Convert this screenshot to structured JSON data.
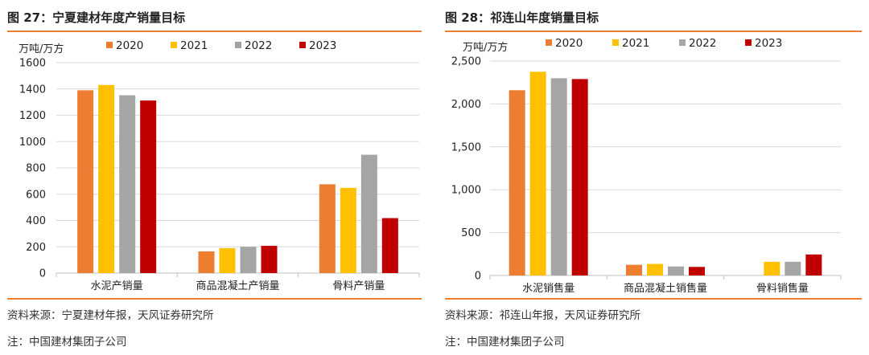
{
  "chart_data": [
    {
      "type": "bar",
      "title": "图 27：宁夏建材年度产销量目标",
      "unit_label": "万吨/万方",
      "categories": [
        "水泥产销量",
        "商品混凝土产销量",
        "骨料产销量"
      ],
      "series": [
        {
          "name": "2020",
          "color": "#ED7D31",
          "values": [
            1390,
            165,
            675
          ]
        },
        {
          "name": "2021",
          "color": "#FFC000",
          "values": [
            1430,
            190,
            648
          ]
        },
        {
          "name": "2022",
          "color": "#A5A5A5",
          "values": [
            1352,
            200,
            900
          ]
        },
        {
          "name": "2023",
          "color": "#C00000",
          "values": [
            1312,
            207,
            418
          ]
        }
      ],
      "yticks": [
        "0",
        "200",
        "400",
        "600",
        "800",
        "1000",
        "1200",
        "1400",
        "1600"
      ],
      "ylim": [
        0,
        1600
      ],
      "grid": true,
      "legend": "top",
      "source": "资料来源：宁夏建材年报，天风证券研究所",
      "note": "注：中国建材集团子公司"
    },
    {
      "type": "bar",
      "title": "图 28：祁连山年度销量目标",
      "unit_label": "万吨/万方",
      "categories": [
        "水泥销售量",
        "商品混凝土销售量",
        "骨料销售量"
      ],
      "series": [
        {
          "name": "2020",
          "color": "#ED7D31",
          "values": [
            2160,
            125,
            null
          ]
        },
        {
          "name": "2021",
          "color": "#FFC000",
          "values": [
            2375,
            135,
            160
          ]
        },
        {
          "name": "2022",
          "color": "#A5A5A5",
          "values": [
            2300,
            105,
            160
          ]
        },
        {
          "name": "2023",
          "color": "#C00000",
          "values": [
            2290,
            100,
            245
          ]
        }
      ],
      "yticks": [
        "0",
        "500",
        "1,000",
        "1,500",
        "2,000",
        "2,500"
      ],
      "ylim": [
        0,
        2500
      ],
      "grid": true,
      "legend": "top",
      "source": "资料来源：祁连山年报，天风证券研究所",
      "note": "注：中国建材集团子公司"
    }
  ]
}
